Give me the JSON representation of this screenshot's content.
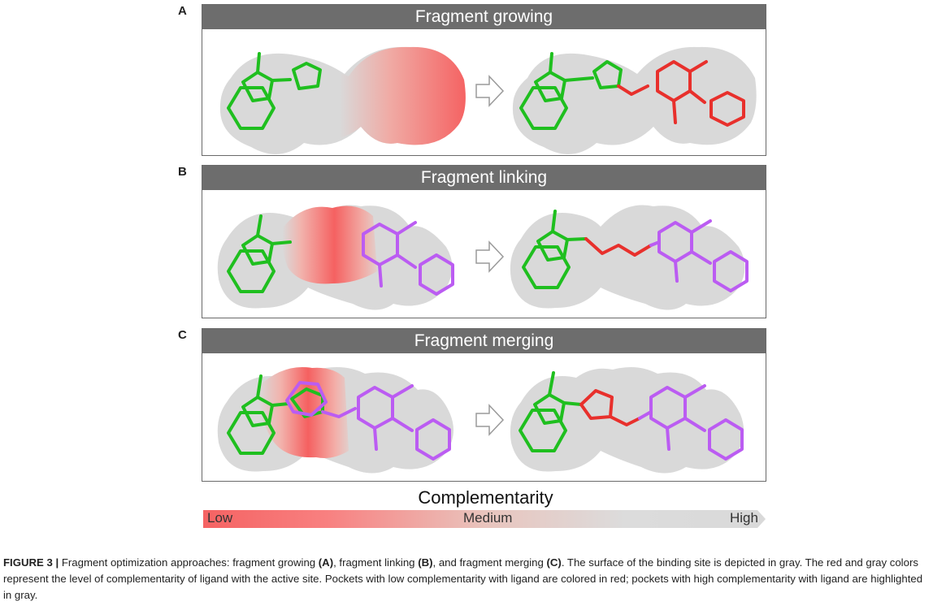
{
  "panels": [
    {
      "letter": "A",
      "title": "Fragment growing"
    },
    {
      "letter": "B",
      "title": "Fragment linking"
    },
    {
      "letter": "C",
      "title": "Fragment merging"
    }
  ],
  "scale": {
    "title": "Complementarity",
    "low": "Low",
    "medium": "Medium",
    "high": "High"
  },
  "colors": {
    "header": "#6d6d6d",
    "surface": "#d9d9d9",
    "low": "#f55a5a",
    "fragment_green": "#1fbf1f",
    "fragment_purple": "#bb5cf2",
    "linker_red": "#e8302c"
  },
  "caption": {
    "label": "FIGURE 3 |",
    "p1": " Fragment optimization approaches: fragment growing ",
    "refA": "(A)",
    "p2": ", fragment linking ",
    "refB": "(B)",
    "p3": ", and fragment merging ",
    "refC": "(C)",
    "p4": ". The surface of the binding site is depicted in gray. The red and gray colors represent the level of complementarity of ligand with the active site. Pockets with low complementarity with ligand are colored in red; pockets with high complementarity with ligand are highlighted in gray."
  }
}
